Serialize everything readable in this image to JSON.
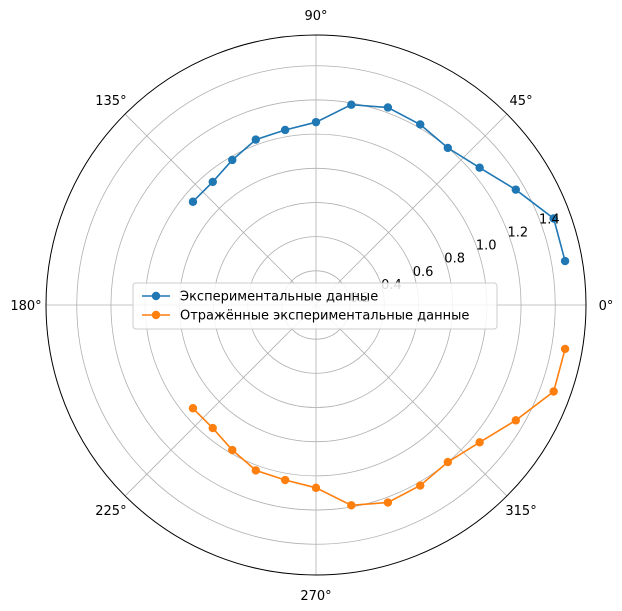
{
  "chart_data": {
    "type": "line",
    "projection": "polar",
    "grid": true,
    "legend_position": "center",
    "theta_ticks": [
      "0°",
      "45°",
      "90°",
      "135°",
      "180°",
      "225°",
      "270°",
      "315°"
    ],
    "r_ticks": [
      {
        "value": 0.2,
        "label": "0.2"
      },
      {
        "value": 0.4,
        "label": "0.4"
      },
      {
        "value": 0.6,
        "label": "0.6"
      },
      {
        "value": 0.8,
        "label": "0.8"
      },
      {
        "value": 1.0,
        "label": "1.0"
      },
      {
        "value": 1.2,
        "label": "1.2"
      },
      {
        "value": 1.4,
        "label": "1.4"
      }
    ],
    "rlim": [
      0,
      1.58
    ],
    "series": [
      {
        "name": "Экспериментальные данные",
        "color": "#1f77b4",
        "theta_deg": [
          10,
          20,
          30,
          40,
          50,
          60,
          70,
          80,
          90,
          100,
          110,
          120,
          130,
          140
        ],
        "r": [
          1.48,
          1.48,
          1.35,
          1.25,
          1.2,
          1.22,
          1.23,
          1.19,
          1.07,
          1.04,
          1.03,
          0.98,
          0.94,
          0.94
        ]
      },
      {
        "name": "Отражённые экспериментальные данные",
        "color": "#ff7f0e",
        "theta_deg": [
          350,
          340,
          330,
          320,
          310,
          300,
          290,
          280,
          270,
          260,
          250,
          240,
          230,
          220
        ],
        "r": [
          1.48,
          1.48,
          1.35,
          1.25,
          1.2,
          1.22,
          1.23,
          1.19,
          1.07,
          1.04,
          1.03,
          0.98,
          0.94,
          0.94
        ]
      }
    ]
  }
}
